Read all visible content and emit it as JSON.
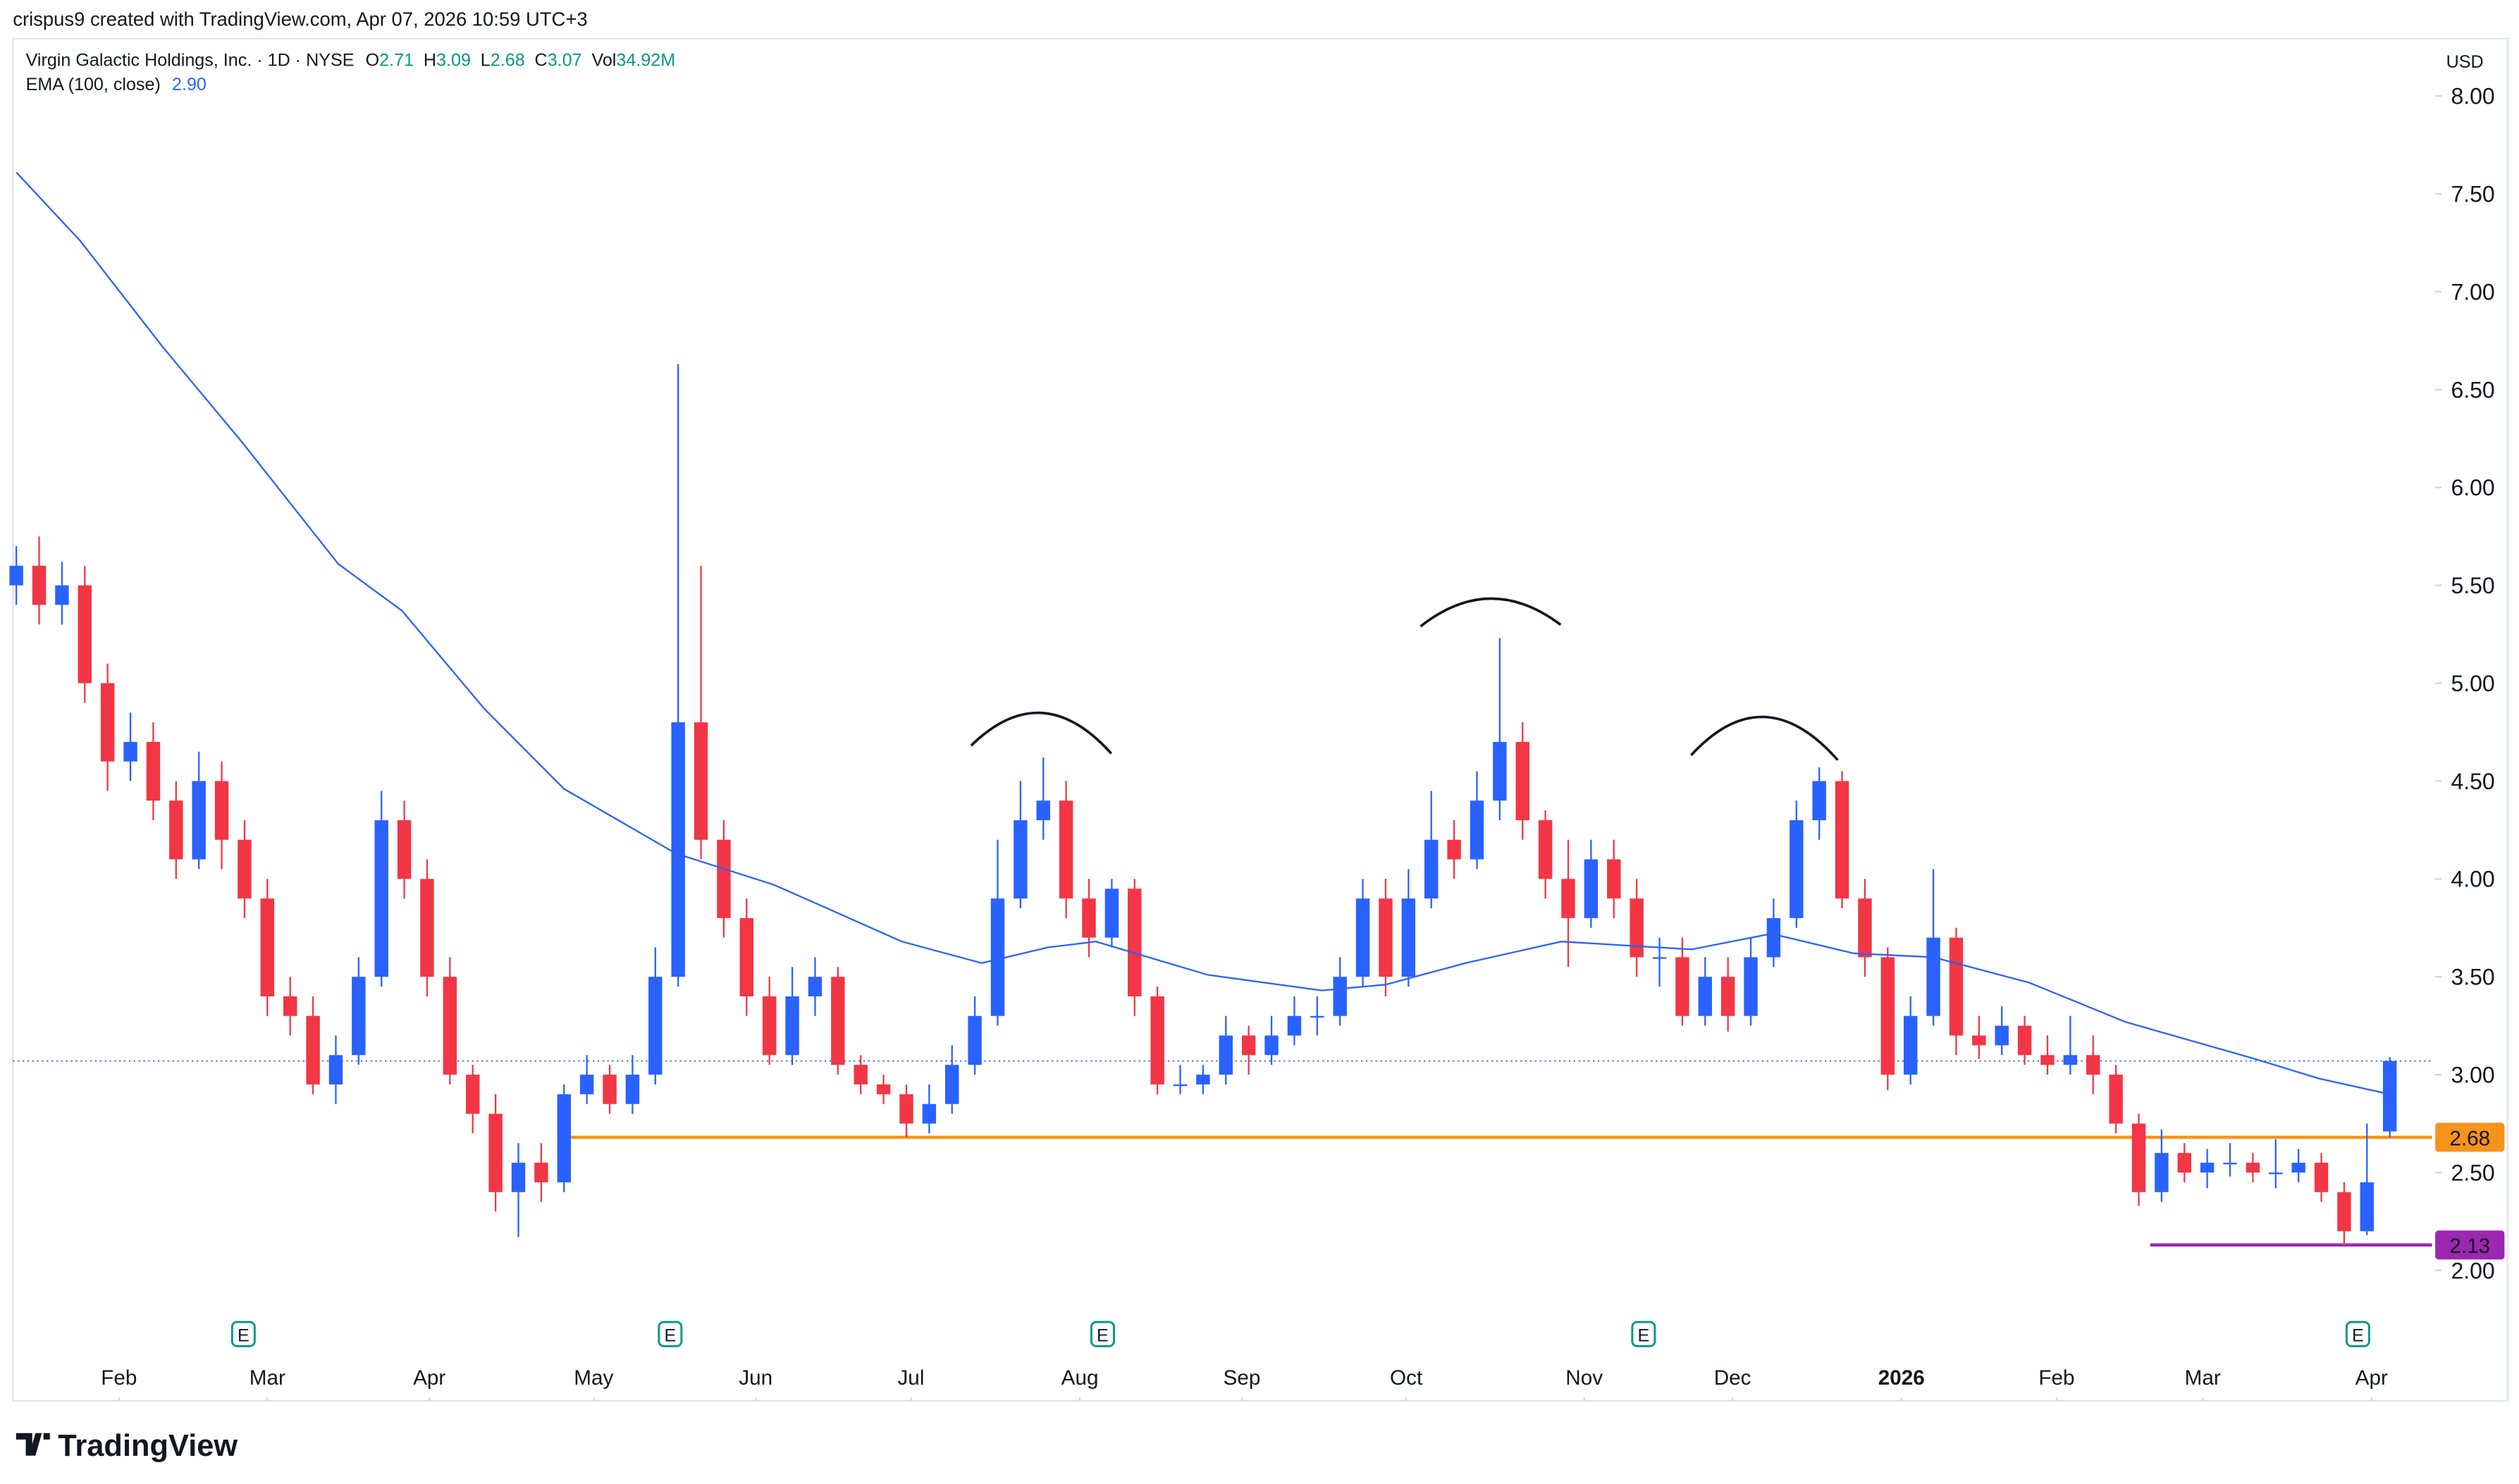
{
  "chart_data": {
    "type": "candlestick",
    "attribution": "crispus9 created with TradingView.com, Apr 07, 2026 10:59 UTC+3",
    "title": "Virgin Galactic Holdings, Inc. · 1D · NYSE",
    "ohlc_labels": [
      "O",
      "H",
      "L",
      "C",
      "Vol"
    ],
    "volume_label": "34.92M",
    "ema": {
      "name": "EMA (100, close)",
      "value_label": "2.90",
      "color": "#2962ff",
      "x": [
        0,
        2.8,
        6.4,
        9.9,
        14.1,
        16.9,
        20.5,
        24,
        28.9,
        33.2,
        38.8,
        42.3,
        45.2,
        47.3,
        52.2,
        57.2,
        60,
        63.5,
        67.7,
        73.4,
        76.9,
        80.5,
        84,
        88.2,
        92.4,
        98.1,
        100.9,
        104
      ],
      "values": [
        7.61,
        7.26,
        6.72,
        6.23,
        5.61,
        5.37,
        4.87,
        4.46,
        4.13,
        3.97,
        3.68,
        3.57,
        3.65,
        3.68,
        3.51,
        3.43,
        3.46,
        3.57,
        3.68,
        3.64,
        3.72,
        3.62,
        3.6,
        3.47,
        3.27,
        3.08,
        2.98,
        2.9
      ]
    },
    "currency": "USD",
    "up_color": "#2962ff",
    "down_color": "#f23645",
    "header_value_color": "#089981",
    "open": [
      5.5,
      5.6,
      5.4,
      5.5,
      5.0,
      4.6,
      4.7,
      4.4,
      4.1,
      4.5,
      4.2,
      3.9,
      3.4,
      3.3,
      2.95,
      3.1,
      3.5,
      4.3,
      4.0,
      3.5,
      3.0,
      2.8,
      2.4,
      2.55,
      2.45,
      2.9,
      3.0,
      2.85,
      3.0,
      3.5,
      4.8,
      4.2,
      3.8,
      3.4,
      3.1,
      3.4,
      3.5,
      3.05,
      2.95,
      2.9,
      2.75,
      2.85,
      3.05,
      3.3,
      3.9,
      4.3,
      4.4,
      3.9,
      3.7,
      3.95,
      3.4,
      2.95,
      2.95,
      3.0,
      3.2,
      3.1,
      3.2,
      3.3,
      3.3,
      3.5,
      3.9,
      3.5,
      3.9,
      4.2,
      4.1,
      4.4,
      4.7,
      4.3,
      4.0,
      3.8,
      4.1,
      3.9,
      3.6,
      3.6,
      3.3,
      3.5,
      3.3,
      3.6,
      3.8,
      4.3,
      4.5,
      3.9,
      3.6,
      3.0,
      3.3,
      3.7,
      3.2,
      3.15,
      3.25,
      3.1,
      3.05,
      3.1,
      3.0,
      2.75,
      2.4,
      2.6,
      2.5,
      2.55,
      2.55,
      2.5,
      2.5,
      2.55,
      2.4,
      2.2,
      2.71
    ],
    "high": [
      5.7,
      5.75,
      5.62,
      5.6,
      5.1,
      4.85,
      4.8,
      4.5,
      4.65,
      4.6,
      4.3,
      4.0,
      3.5,
      3.4,
      3.2,
      3.6,
      4.45,
      4.4,
      4.1,
      3.6,
      3.05,
      2.9,
      2.65,
      2.65,
      2.95,
      3.1,
      3.05,
      3.1,
      3.65,
      6.63,
      5.6,
      4.3,
      3.9,
      3.5,
      3.55,
      3.6,
      3.55,
      3.1,
      3.0,
      2.95,
      2.95,
      3.15,
      3.4,
      4.2,
      4.5,
      4.62,
      4.5,
      4.0,
      4.0,
      4.0,
      3.45,
      3.05,
      3.05,
      3.3,
      3.25,
      3.3,
      3.4,
      3.4,
      3.6,
      4.0,
      4.0,
      4.05,
      4.45,
      4.3,
      4.55,
      5.23,
      4.8,
      4.35,
      4.2,
      4.2,
      4.2,
      4.0,
      3.7,
      3.7,
      3.6,
      3.6,
      3.7,
      3.9,
      4.4,
      4.57,
      4.55,
      4.0,
      3.65,
      3.4,
      4.05,
      3.75,
      3.3,
      3.35,
      3.3,
      3.2,
      3.3,
      3.2,
      3.05,
      2.8,
      2.72,
      2.65,
      2.62,
      2.65,
      2.6,
      2.67,
      2.62,
      2.6,
      2.45,
      2.75,
      3.09
    ],
    "low": [
      5.4,
      5.3,
      5.3,
      4.9,
      4.45,
      4.5,
      4.3,
      4.0,
      4.05,
      4.05,
      3.8,
      3.3,
      3.2,
      2.9,
      2.85,
      3.05,
      3.45,
      3.9,
      3.4,
      2.95,
      2.7,
      2.3,
      2.17,
      2.35,
      2.4,
      2.85,
      2.8,
      2.8,
      2.95,
      3.45,
      4.1,
      3.7,
      3.3,
      3.05,
      3.05,
      3.3,
      3.0,
      2.9,
      2.85,
      2.68,
      2.7,
      2.8,
      3.0,
      3.25,
      3.85,
      4.2,
      3.8,
      3.6,
      3.65,
      3.3,
      2.9,
      2.9,
      2.9,
      2.95,
      3.0,
      3.05,
      3.15,
      3.2,
      3.25,
      3.45,
      3.4,
      3.45,
      3.85,
      4.0,
      4.05,
      4.3,
      4.2,
      3.9,
      3.55,
      3.75,
      3.8,
      3.5,
      3.45,
      3.25,
      3.25,
      3.22,
      3.25,
      3.55,
      3.75,
      4.2,
      3.85,
      3.5,
      2.92,
      2.95,
      3.25,
      3.1,
      3.08,
      3.1,
      3.05,
      3.0,
      3.0,
      2.9,
      2.7,
      2.33,
      2.35,
      2.45,
      2.42,
      2.48,
      2.45,
      2.42,
      2.45,
      2.35,
      2.13,
      2.18,
      2.68
    ],
    "close": [
      5.6,
      5.4,
      5.5,
      5.0,
      4.6,
      4.7,
      4.4,
      4.1,
      4.5,
      4.2,
      3.9,
      3.4,
      3.3,
      2.95,
      3.1,
      3.5,
      4.3,
      4.0,
      3.5,
      3.0,
      2.8,
      2.4,
      2.55,
      2.45,
      2.9,
      3.0,
      2.85,
      3.0,
      3.5,
      4.8,
      4.2,
      3.8,
      3.4,
      3.1,
      3.4,
      3.5,
      3.05,
      2.95,
      2.9,
      2.75,
      2.85,
      3.05,
      3.3,
      3.9,
      4.3,
      4.4,
      3.9,
      3.7,
      3.95,
      3.4,
      2.95,
      2.95,
      3.0,
      3.2,
      3.1,
      3.2,
      3.3,
      3.3,
      3.5,
      3.9,
      3.5,
      3.9,
      4.2,
      4.1,
      4.4,
      4.7,
      4.3,
      4.0,
      3.8,
      4.1,
      3.9,
      3.6,
      3.6,
      3.3,
      3.5,
      3.3,
      3.6,
      3.8,
      4.3,
      4.5,
      3.9,
      3.6,
      3.0,
      3.3,
      3.7,
      3.2,
      3.15,
      3.25,
      3.1,
      3.05,
      3.1,
      3.0,
      2.75,
      2.4,
      2.6,
      2.5,
      2.55,
      2.55,
      2.5,
      2.5,
      2.55,
      2.4,
      2.2,
      2.45,
      3.07
    ],
    "xlim": [
      -0.15,
      105.85
    ],
    "xticks": [
      {
        "value": 4.5,
        "label": "Feb"
      },
      {
        "value": 11,
        "label": "Mar"
      },
      {
        "value": 18.1,
        "label": "Apr"
      },
      {
        "value": 25.3,
        "label": "May"
      },
      {
        "value": 32.4,
        "label": "Jun"
      },
      {
        "value": 39.2,
        "label": "Jul"
      },
      {
        "value": 46.6,
        "label": "Aug"
      },
      {
        "value": 53.7,
        "label": "Sep"
      },
      {
        "value": 60.9,
        "label": "Oct"
      },
      {
        "value": 68.7,
        "label": "Nov"
      },
      {
        "value": 75.2,
        "label": "Dec"
      },
      {
        "value": 82.6,
        "label": "2026"
      },
      {
        "value": 89.4,
        "label": "Feb"
      },
      {
        "value": 95.8,
        "label": "Mar"
      },
      {
        "value": 103.2,
        "label": "Apr"
      }
    ],
    "bold_xtick": "2026",
    "ylim": [
      1.58,
      8.26
    ],
    "yticks": [
      {
        "value": 2,
        "label": "2.00"
      },
      {
        "value": 2.5,
        "label": "2.50"
      },
      {
        "value": 3,
        "label": "3.00"
      },
      {
        "value": 3.5,
        "label": "3.50"
      },
      {
        "value": 4,
        "label": "4.00"
      },
      {
        "value": 4.5,
        "label": "4.50"
      },
      {
        "value": 5,
        "label": "5.00"
      },
      {
        "value": 5.5,
        "label": "5.50"
      },
      {
        "value": 6,
        "label": "6.00"
      },
      {
        "value": 6.5,
        "label": "6.50"
      },
      {
        "value": 7,
        "label": "7.00"
      },
      {
        "value": 7.5,
        "label": "7.50"
      },
      {
        "value": 8,
        "label": "8.00"
      }
    ],
    "levels": [
      {
        "value": 2.68,
        "from": 23.8,
        "color": "#f7931a",
        "text_color": "#131722"
      },
      {
        "value": 2.13,
        "from": 93.5,
        "color": "#9c27b0",
        "text_color": "#ffffff"
      }
    ],
    "earnings": {
      "label": "E",
      "x": [
        9.95,
        28.65,
        47.6,
        71.3,
        102.6
      ]
    },
    "brand": "TradingView"
  }
}
